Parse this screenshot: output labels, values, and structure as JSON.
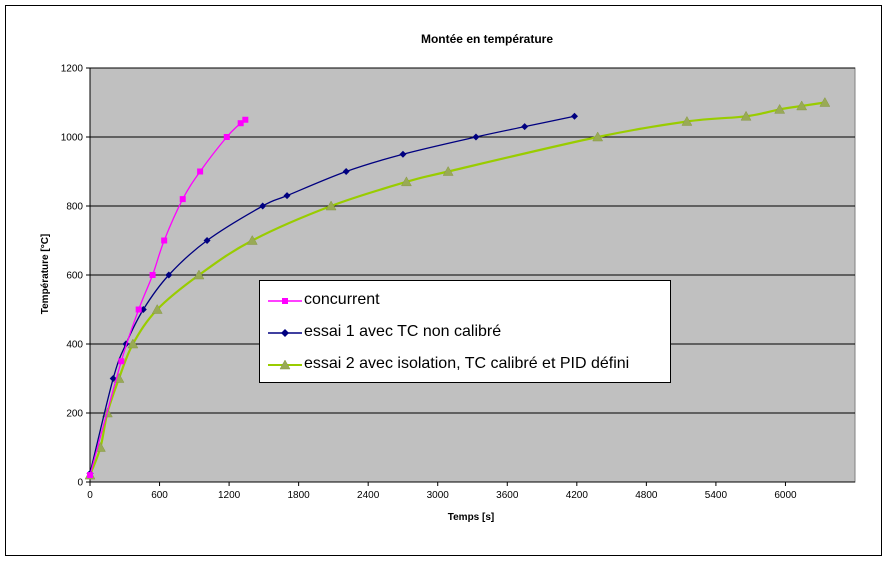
{
  "chart_data": {
    "type": "line",
    "title": "Montée en température",
    "xlabel": "Temps [s]",
    "ylabel": "Température [°C]",
    "xlim": [
      0,
      6600
    ],
    "ylim": [
      0,
      1200
    ],
    "xticks": [
      0,
      600,
      1200,
      1800,
      2400,
      3000,
      3600,
      4200,
      4800,
      5400,
      6000
    ],
    "yticks": [
      0,
      200,
      400,
      600,
      800,
      1000,
      1200
    ],
    "grid": "horizontal major lines",
    "plot_background": "#c0c0c0",
    "legend_position": "center",
    "series": [
      {
        "name": "concurrent",
        "color": "#ff00ff",
        "marker": "square",
        "points": [
          [
            0,
            20
          ],
          [
            270,
            350
          ],
          [
            420,
            500
          ],
          [
            540,
            600
          ],
          [
            640,
            700
          ],
          [
            800,
            820
          ],
          [
            950,
            900
          ],
          [
            1180,
            1000
          ],
          [
            1300,
            1040
          ],
          [
            1340,
            1050
          ]
        ]
      },
      {
        "name": "essai 1 avec TC non calibré",
        "color": "#000080",
        "marker": "diamond",
        "points": [
          [
            0,
            25
          ],
          [
            200,
            300
          ],
          [
            310,
            400
          ],
          [
            460,
            500
          ],
          [
            680,
            600
          ],
          [
            1010,
            700
          ],
          [
            1490,
            800
          ],
          [
            1700,
            830
          ],
          [
            2210,
            900
          ],
          [
            2700,
            950
          ],
          [
            3330,
            1000
          ],
          [
            3750,
            1030
          ],
          [
            4180,
            1060
          ]
        ]
      },
      {
        "name": "essai 2 avec isolation, TC calibré et PID défini",
        "color": "#99cc00",
        "marker": "triangle",
        "points": [
          [
            0,
            20
          ],
          [
            90,
            100
          ],
          [
            150,
            200
          ],
          [
            250,
            300
          ],
          [
            370,
            400
          ],
          [
            580,
            500
          ],
          [
            940,
            600
          ],
          [
            1400,
            700
          ],
          [
            2080,
            800
          ],
          [
            2730,
            870
          ],
          [
            3090,
            900
          ],
          [
            4380,
            1000
          ],
          [
            5150,
            1045
          ],
          [
            5660,
            1060
          ],
          [
            5950,
            1080
          ],
          [
            6140,
            1090
          ],
          [
            6340,
            1100
          ]
        ]
      }
    ]
  }
}
